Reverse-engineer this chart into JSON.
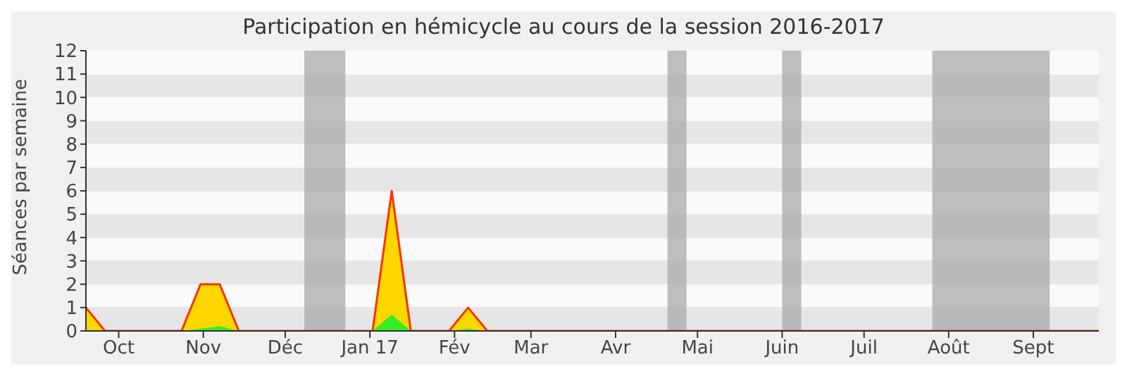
{
  "chart_data": {
    "type": "area",
    "title": "Participation en hémicycle au cours de la session 2016-2017",
    "ylabel": "Séances par semaine",
    "x": [
      "2016-09-19",
      "2016-09-26",
      "2016-10-24",
      "2016-10-31",
      "2016-11-07",
      "2016-11-14",
      "2017-01-02",
      "2017-01-09",
      "2017-01-16",
      "2017-01-30",
      "2017-02-06",
      "2017-02-13",
      "2017-09-25"
    ],
    "series": [
      {
        "color": "#ffd700",
        "values": [
          1,
          0,
          0,
          2,
          2,
          0,
          0,
          6,
          0,
          0,
          1,
          0,
          0
        ]
      },
      {
        "color": "#33ee22",
        "values": [
          0,
          0,
          0,
          0.1,
          0.2,
          0,
          0,
          0.7,
          0,
          0,
          0.1,
          0,
          0
        ]
      }
    ],
    "xlim": [
      "2016-09-19",
      "2017-09-25"
    ],
    "xticks": [
      {
        "value": "2016-10-01",
        "label": "Oct"
      },
      {
        "value": "2016-11-01",
        "label": "Nov"
      },
      {
        "value": "2016-12-01",
        "label": "Déc"
      },
      {
        "value": "2017-01-01",
        "label": "Jan 17"
      },
      {
        "value": "2017-02-01",
        "label": "Fév"
      },
      {
        "value": "2017-03-01",
        "label": "Mar"
      },
      {
        "value": "2017-04-01",
        "label": "Avr"
      },
      {
        "value": "2017-05-01",
        "label": "Mai"
      },
      {
        "value": "2017-06-01",
        "label": "Juin"
      },
      {
        "value": "2017-07-01",
        "label": "Juil"
      },
      {
        "value": "2017-08-01",
        "label": "Août"
      },
      {
        "value": "2017-09-01",
        "label": "Sept"
      }
    ],
    "ylim": [
      0,
      12
    ],
    "yticks": [
      0,
      1,
      2,
      3,
      4,
      5,
      6,
      7,
      8,
      9,
      10,
      11,
      12
    ],
    "legend": false,
    "bands": [
      {
        "axis": "x",
        "from": "2016-12-08",
        "to": "2016-12-23",
        "color": "#aaaaaa"
      },
      {
        "axis": "x",
        "from": "2017-04-20",
        "to": "2017-04-27",
        "color": "#aaaaaa"
      },
      {
        "axis": "x",
        "from": "2017-06-01",
        "to": "2017-06-08",
        "color": "#aaaaaa"
      },
      {
        "axis": "x",
        "from": "2017-07-26",
        "to": "2017-09-07",
        "color": "#aaaaaa"
      }
    ]
  }
}
